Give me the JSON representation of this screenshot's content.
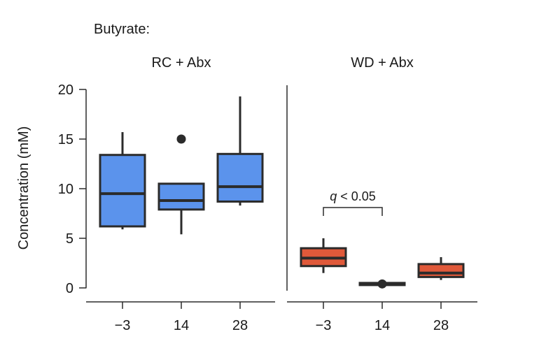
{
  "chart_data": {
    "type": "box",
    "title": "Butyrate:",
    "ylabel": "Concentration (mM)",
    "ylim": [
      -1,
      20.5
    ],
    "yticks": [
      "0",
      "5",
      "10",
      "15",
      "20"
    ],
    "categories": [
      "−3",
      "14",
      "28"
    ],
    "panels": [
      {
        "name": "RC + Abx",
        "color": "#5b93ec",
        "boxes": [
          {
            "x": "−3",
            "whisker_low": 5.9,
            "q1": 6.2,
            "median": 9.5,
            "q3": 13.4,
            "whisker_high": 15.7,
            "outliers": []
          },
          {
            "x": "14",
            "whisker_low": 5.4,
            "q1": 7.9,
            "median": 8.8,
            "q3": 10.5,
            "whisker_high": 10.5,
            "outliers": [
              15.0
            ]
          },
          {
            "x": "28",
            "whisker_low": 8.3,
            "q1": 8.7,
            "median": 10.2,
            "q3": 13.5,
            "whisker_high": 19.3,
            "outliers": []
          }
        ]
      },
      {
        "name": "WD + Abx",
        "color": "#e0593a",
        "boxes": [
          {
            "x": "−3",
            "whisker_low": 1.5,
            "q1": 2.2,
            "median": 3.0,
            "q3": 4.0,
            "whisker_high": 5.0,
            "outliers": []
          },
          {
            "x": "14",
            "whisker_low": 0.3,
            "q1": 0.3,
            "median": 0.4,
            "q3": 0.5,
            "whisker_high": 0.5,
            "outliers": [
              0.4
            ]
          },
          {
            "x": "28",
            "whisker_low": 0.8,
            "q1": 1.1,
            "median": 1.5,
            "q3": 2.4,
            "whisker_high": 3.1,
            "outliers": []
          }
        ],
        "annotation": {
          "label_italic": "q",
          "label_rest": " < 0.05",
          "from": "−3",
          "to": "14",
          "y": 8.1
        }
      }
    ]
  }
}
